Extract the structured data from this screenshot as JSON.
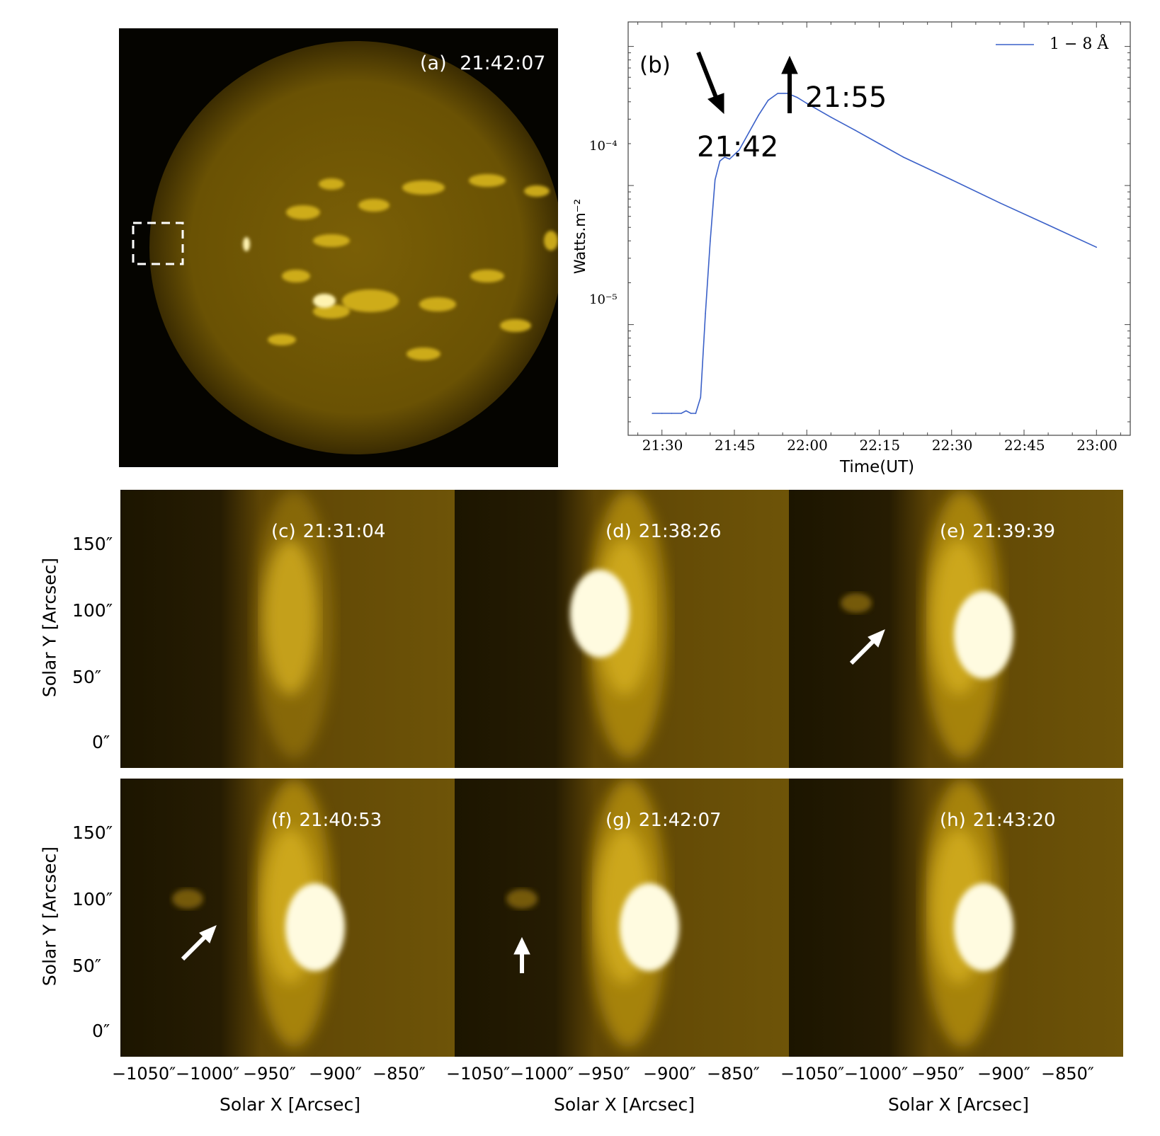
{
  "colors": {
    "sun_fill": "#6a5204",
    "sun_limb": "#3b2c02",
    "bright": "#fff3b0",
    "plage": "#d8b51e",
    "space": "#050400",
    "cutout_bg": "#644c06",
    "curve": "#3a60c8"
  },
  "panel_a": {
    "label": "(a)",
    "time": "21:42:07"
  },
  "panel_b": {
    "label": "(b)",
    "legend": "1 − 8 Å",
    "annotation_1": "21:42",
    "annotation_2": "21:55",
    "ylabel": "Watts.m⁻²",
    "xlabel": "Time(UT)",
    "ytick_1": "10⁻⁴",
    "ytick_2": "10⁻⁵",
    "xticks": [
      "21:30",
      "21:45",
      "22:00",
      "22:15",
      "22:30",
      "22:45",
      "23:00"
    ]
  },
  "chart_data": {
    "type": "line",
    "yscale": "log",
    "xlabel": "Time(UT)",
    "ylabel": "Watts.m⁻²",
    "xlim": [
      "21:23",
      "23:07"
    ],
    "ylim": [
      1.6e-06,
      0.0015
    ],
    "series": [
      {
        "name": "1 − 8 Å",
        "x": [
          "21:28",
          "21:30",
          "21:32",
          "21:34",
          "21:35",
          "21:36",
          "21:37",
          "21:38",
          "21:39",
          "21:40",
          "21:41",
          "21:42",
          "21:43",
          "21:44",
          "21:46",
          "21:48",
          "21:50",
          "21:52",
          "21:54",
          "21:56",
          "21:58",
          "22:00",
          "22:05",
          "22:10",
          "22:15",
          "22:20",
          "22:30",
          "22:40",
          "22:50",
          "23:00"
        ],
        "values": [
          2.3e-06,
          2.3e-06,
          2.3e-06,
          2.3e-06,
          2.4e-06,
          2.3e-06,
          2.3e-06,
          3e-06,
          1.2e-05,
          4e-05,
          0.00011,
          0.00015,
          0.00016,
          0.000155,
          0.00018,
          0.00024,
          0.00032,
          0.00041,
          0.00046,
          0.00046,
          0.00043,
          0.00039,
          0.00031,
          0.00025,
          0.0002,
          0.00016,
          0.00011,
          7.5e-05,
          5.2e-05,
          3.6e-05
        ]
      }
    ]
  },
  "cutouts": {
    "panels": [
      {
        "label": "(c)",
        "time": "21:31:04"
      },
      {
        "label": "(d)",
        "time": "21:38:26"
      },
      {
        "label": "(e)",
        "time": "21:39:39"
      },
      {
        "label": "(f)",
        "time": "21:40:53"
      },
      {
        "label": "(g)",
        "time": "21:42:07"
      },
      {
        "label": "(h)",
        "time": "21:43:20"
      }
    ],
    "yticks": [
      "150″",
      "100″",
      "50″",
      "0″"
    ],
    "xticks": [
      "−1050″",
      "−1000″",
      "−950″",
      "−900″",
      "−850″"
    ],
    "ylabel": "Solar Y [Arcsec]",
    "xlabel": "Solar X [Arcsec]"
  }
}
